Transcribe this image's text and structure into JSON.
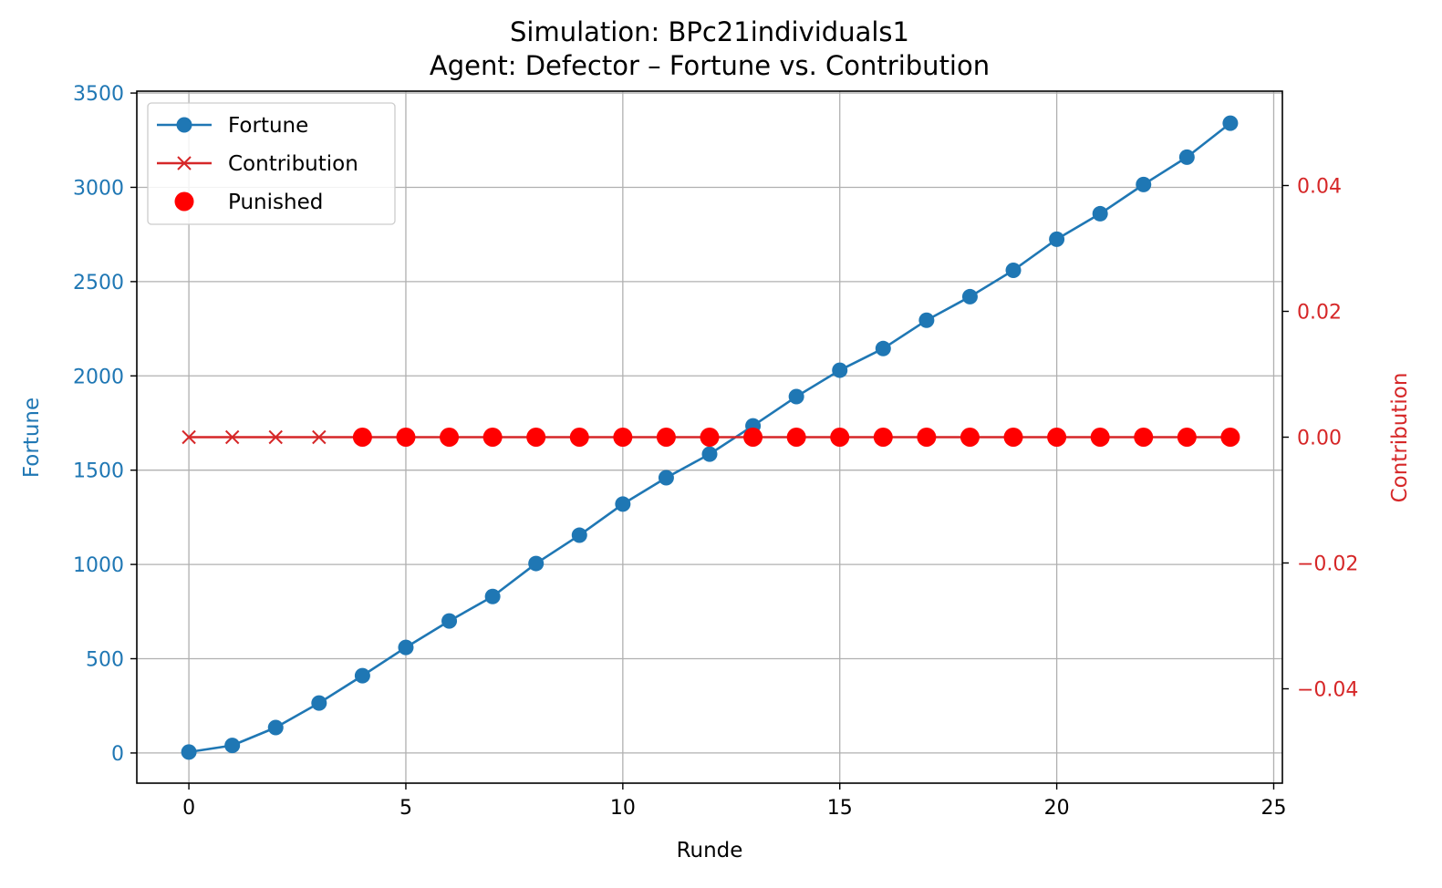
{
  "chart_data": {
    "type": "line",
    "title": "Simulation: BPc21individuals1",
    "subtitle": "Agent: Defector – Fortune vs. Contribution",
    "xlabel": "Runde",
    "ylabel_left": "Fortune",
    "ylabel_right": "Contribution",
    "xlim": [
      -1.2,
      25.2
    ],
    "ylim_left": [
      -160,
      3510
    ],
    "ylim_right": [
      -0.055,
      0.055
    ],
    "x_ticks": [
      0,
      5,
      10,
      15,
      20,
      25
    ],
    "x_tick_labels": [
      "0",
      "5",
      "10",
      "15",
      "20",
      "25"
    ],
    "y_left_ticks": [
      0,
      500,
      1000,
      1500,
      2000,
      2500,
      3000,
      3500
    ],
    "y_left_tick_labels": [
      "0",
      "500",
      "1000",
      "1500",
      "2000",
      "2500",
      "3000",
      "3500"
    ],
    "y_right_ticks": [
      -0.04,
      -0.02,
      0.0,
      0.02,
      0.04
    ],
    "y_right_tick_labels": [
      "−0.04",
      "−0.02",
      "0.00",
      "0.02",
      "0.04"
    ],
    "grid": true,
    "legend_position": "upper-left",
    "x": [
      0,
      1,
      2,
      3,
      4,
      5,
      6,
      7,
      8,
      9,
      10,
      11,
      12,
      13,
      14,
      15,
      16,
      17,
      18,
      19,
      20,
      21,
      22,
      23,
      24
    ],
    "series": [
      {
        "name": "Fortune",
        "axis": "left",
        "color": "#1f77b4",
        "marker": "circle",
        "values": [
          5,
          40,
          135,
          265,
          410,
          560,
          700,
          830,
          1005,
          1155,
          1320,
          1460,
          1585,
          1735,
          1890,
          2030,
          2145,
          2295,
          2420,
          2560,
          2725,
          2860,
          3015,
          3160,
          3340
        ]
      },
      {
        "name": "Contribution",
        "axis": "right",
        "color": "#d62728",
        "marker": "x",
        "values": [
          0,
          0,
          0,
          0,
          0,
          0,
          0,
          0,
          0,
          0,
          0,
          0,
          0,
          0,
          0,
          0,
          0,
          0,
          0,
          0,
          0,
          0,
          0,
          0,
          0
        ]
      },
      {
        "name": "Punished",
        "axis": "right",
        "color": "#ff0000",
        "marker": "filled-circle",
        "x": [
          4,
          5,
          6,
          7,
          8,
          9,
          10,
          11,
          12,
          13,
          14,
          15,
          16,
          17,
          18,
          19,
          20,
          21,
          22,
          23,
          24
        ],
        "values": [
          0,
          0,
          0,
          0,
          0,
          0,
          0,
          0,
          0,
          0,
          0,
          0,
          0,
          0,
          0,
          0,
          0,
          0,
          0,
          0,
          0
        ]
      }
    ]
  }
}
